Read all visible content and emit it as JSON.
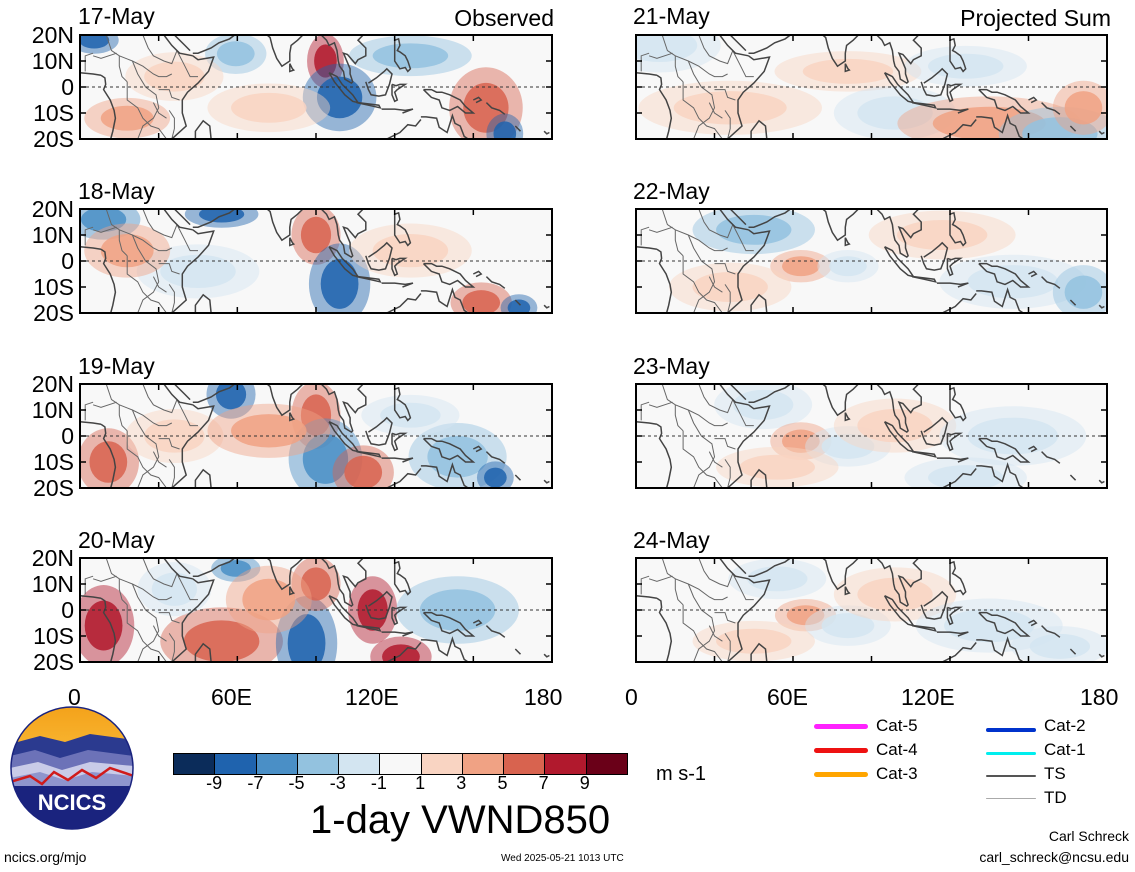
{
  "panels": [
    {
      "date": "17-May",
      "tag": "Observed"
    },
    {
      "date": "18-May",
      "tag": ""
    },
    {
      "date": "19-May",
      "tag": ""
    },
    {
      "date": "20-May",
      "tag": ""
    },
    {
      "date": "21-May",
      "tag": "Projected Sum"
    },
    {
      "date": "22-May",
      "tag": ""
    },
    {
      "date": "23-May",
      "tag": ""
    },
    {
      "date": "24-May",
      "tag": ""
    }
  ],
  "lat_labels": [
    "20N",
    "10N",
    "0",
    "10S",
    "20S"
  ],
  "lon_labels": [
    "0",
    "60E",
    "120E",
    "180"
  ],
  "colorbar": {
    "ticks": [
      "-9",
      "-7",
      "-5",
      "-3",
      "-1",
      "1",
      "3",
      "5",
      "7",
      "9"
    ],
    "colors": [
      "#0b2c5a",
      "#1f63ae",
      "#4a8fc6",
      "#93c2df",
      "#d3e5f1",
      "#f8f8f8",
      "#f9d4c2",
      "#f0a284",
      "#d8634f",
      "#b1192d",
      "#6a0018"
    ],
    "units": "m s-1",
    "title": "1-day VWND850"
  },
  "storm_legend": [
    {
      "label": "Cat-5",
      "color": "#ff22ff"
    },
    {
      "label": "Cat-4",
      "color": "#ee1111"
    },
    {
      "label": "Cat-3",
      "color": "#ffa500"
    },
    {
      "label": "Cat-2",
      "color": "#0033cc"
    },
    {
      "label": "Cat-1",
      "color": "#00eeee"
    },
    {
      "label": "TS",
      "color": "#555555"
    },
    {
      "label": "TD",
      "color": "#aaaaaa"
    }
  ],
  "logo": {
    "text": "NCICS"
  },
  "footer": {
    "url": "ncics.org/mjo",
    "timestamp": "Wed 2025-05-21 1013 UTC",
    "author": "Carl Schreck",
    "email": "carl_schreck@ncsu.edu"
  }
}
